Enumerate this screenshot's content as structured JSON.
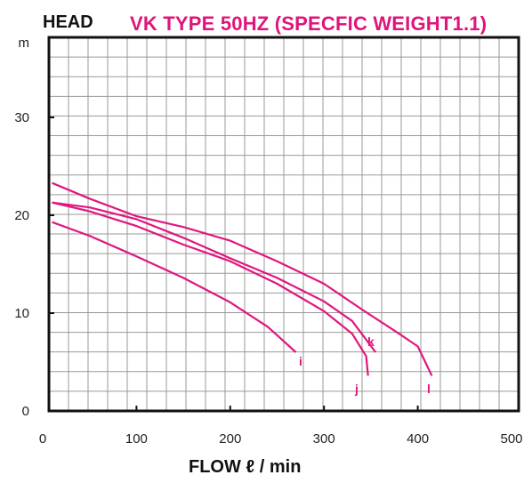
{
  "header": {
    "head_label": "HEAD",
    "title": "VK TYPE 50HZ (SPECFIC WEIGHT1.1)"
  },
  "colors": {
    "title": "#e0147a",
    "curve": "#e0177f",
    "grid": "#999999",
    "frame": "#111111"
  },
  "chart_data": {
    "type": "line",
    "title": "VK TYPE 50HZ (SPECFIC WEIGHT1.1)",
    "xlabel": "FLOW ℓ / min",
    "ylabel": "HEAD",
    "y_unit": "m",
    "xlim": [
      0,
      500
    ],
    "ylim": [
      0,
      35
    ],
    "x_ticks": [
      "0",
      "100",
      "200",
      "300",
      "400",
      "500"
    ],
    "y_ticks": [
      "0",
      "10",
      "20",
      "30"
    ],
    "grid": true,
    "series": [
      {
        "name": "i",
        "points": [
          [
            10,
            19.3
          ],
          [
            50,
            17.9
          ],
          [
            100,
            15.8
          ],
          [
            150,
            13.6
          ],
          [
            200,
            11.1
          ],
          [
            240,
            8.6
          ],
          [
            270,
            6.0
          ]
        ]
      },
      {
        "name": "j",
        "points": [
          [
            10,
            21.3
          ],
          [
            50,
            20.4
          ],
          [
            100,
            18.9
          ],
          [
            150,
            17.0
          ],
          [
            200,
            15.3
          ],
          [
            250,
            13.0
          ],
          [
            300,
            10.2
          ],
          [
            330,
            7.9
          ],
          [
            345,
            5.6
          ],
          [
            347,
            3.6
          ]
        ]
      },
      {
        "name": "k",
        "points": [
          [
            10,
            21.3
          ],
          [
            50,
            20.8
          ],
          [
            100,
            19.6
          ],
          [
            150,
            17.7
          ],
          [
            200,
            15.6
          ],
          [
            250,
            13.6
          ],
          [
            300,
            11.2
          ],
          [
            330,
            9.2
          ],
          [
            355,
            6.0
          ]
        ]
      },
      {
        "name": "l",
        "points": [
          [
            10,
            23.3
          ],
          [
            50,
            21.7
          ],
          [
            100,
            19.9
          ],
          [
            150,
            18.8
          ],
          [
            200,
            17.4
          ],
          [
            250,
            15.3
          ],
          [
            300,
            13.0
          ],
          [
            340,
            10.4
          ],
          [
            380,
            7.9
          ],
          [
            400,
            6.6
          ],
          [
            415,
            3.6
          ]
        ]
      }
    ]
  }
}
